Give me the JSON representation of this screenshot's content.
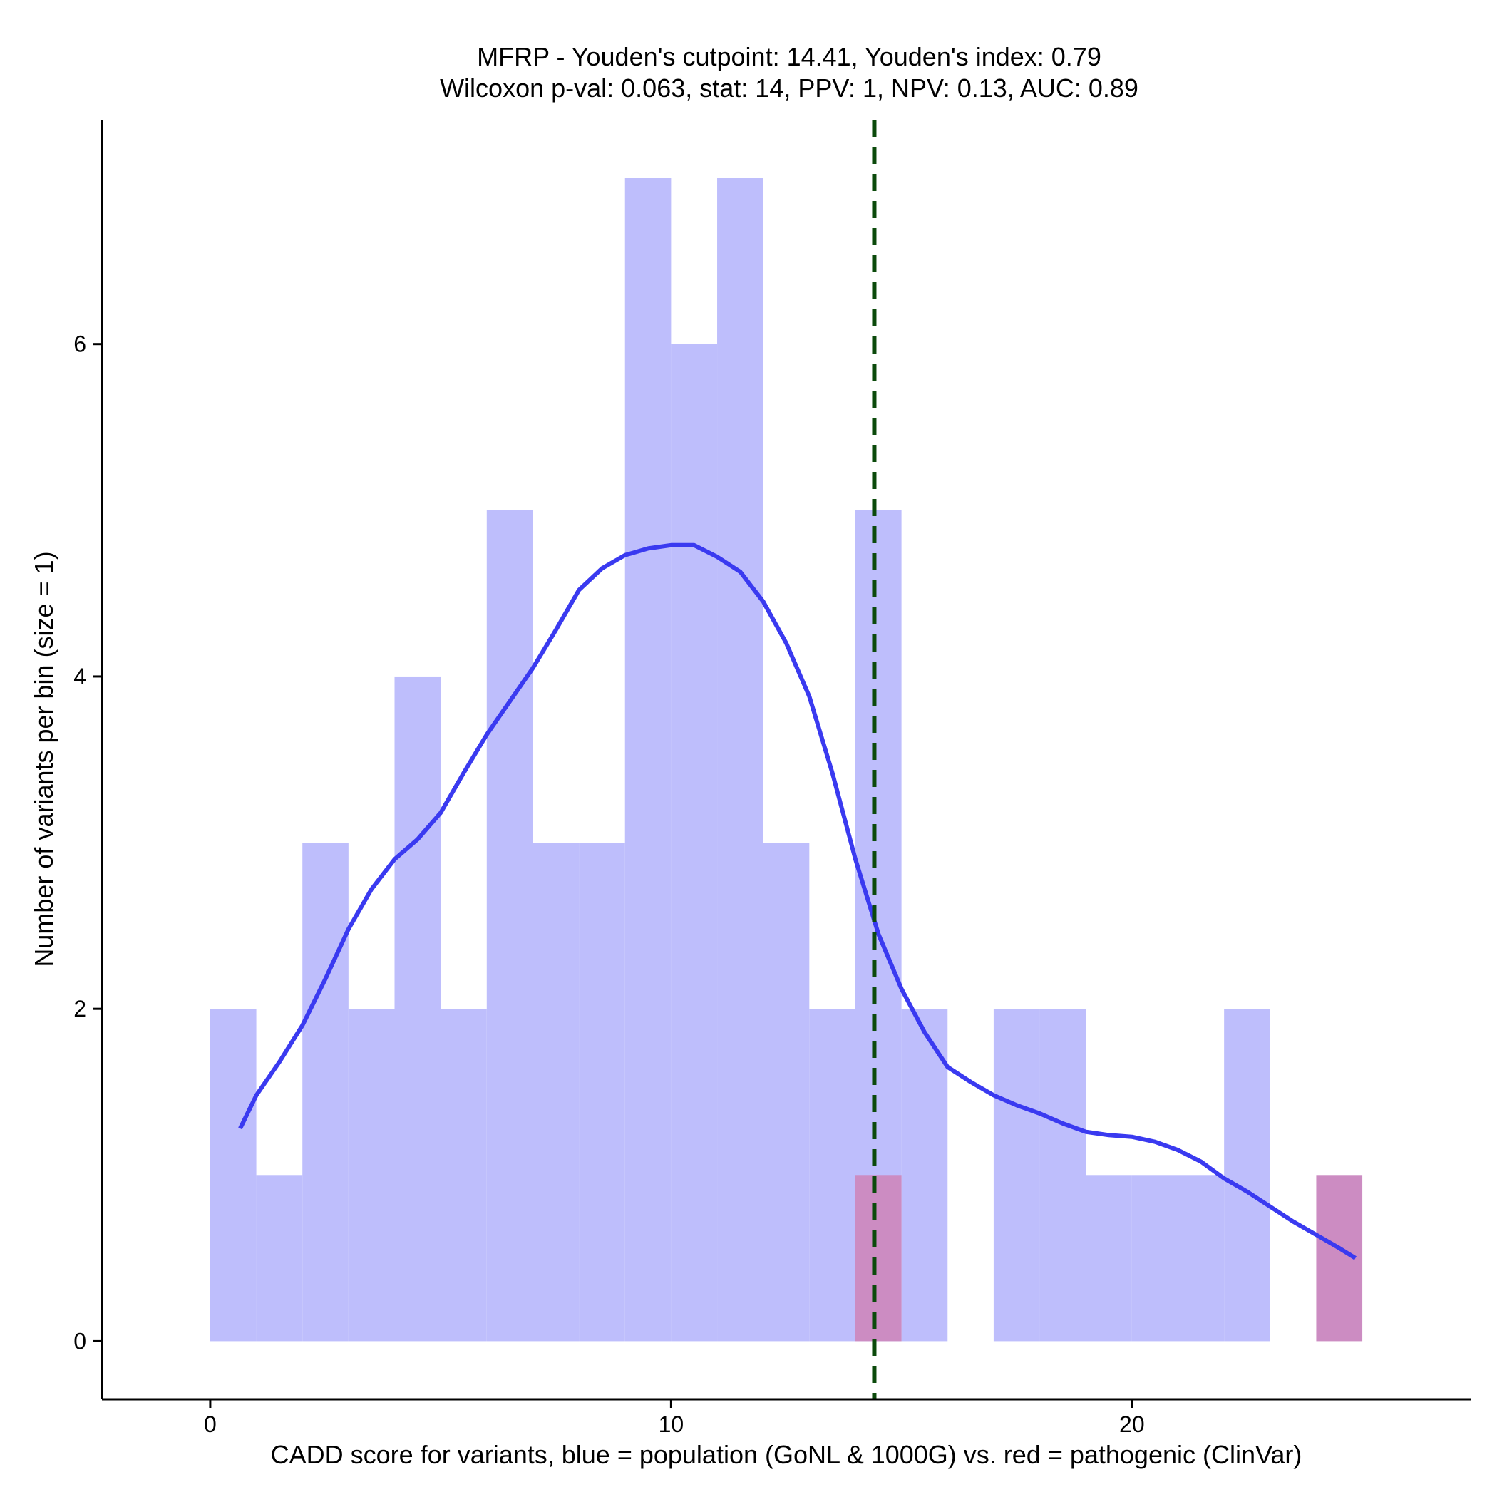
{
  "chart_data": {
    "type": "histogram",
    "title_line1": "MFRP - Youden's cutpoint: 14.41, Youden's index: 0.79",
    "title_line2": "Wilcoxon p-val: 0.063, stat: 14, PPV: 1, NPV: 0.13, AUC: 0.89",
    "xlabel": "CADD score for variants, blue = population (GoNL & 1000G) vs. red = pathogenic (ClinVar)",
    "ylabel": "Number of variants per bin (size = 1)",
    "xlim": [
      -2.35,
      27.35
    ],
    "ylim": [
      -0.35,
      7.35
    ],
    "x_ticks": [
      0,
      10,
      20
    ],
    "x_tick_labels": [
      "0",
      "10",
      "20"
    ],
    "y_ticks": [
      0,
      2,
      4,
      6
    ],
    "y_tick_labels": [
      "0",
      "2",
      "4",
      "6"
    ],
    "bin_width": 1,
    "series": [
      {
        "name": "population",
        "color": "#BEBEFC",
        "bin_starts": [
          0,
          1,
          2,
          3,
          4,
          5,
          6,
          7,
          8,
          9,
          10,
          11,
          12,
          13,
          14,
          15,
          16,
          17,
          18,
          19,
          20,
          21,
          22
        ],
        "counts": [
          2,
          1,
          3,
          2,
          4,
          2,
          5,
          3,
          3,
          7,
          6,
          7,
          3,
          2,
          5,
          2,
          0,
          2,
          2,
          1,
          1,
          1,
          2
        ]
      },
      {
        "name": "pathogenic",
        "color": "#CC8CC2",
        "bin_starts": [
          14,
          24
        ],
        "counts": [
          1,
          1
        ]
      }
    ],
    "density": {
      "color": "#3A3AF0",
      "x": [
        0.65,
        1.0,
        1.5,
        2.0,
        2.5,
        3.0,
        3.5,
        4.0,
        4.5,
        5.0,
        5.5,
        6.0,
        6.5,
        7.0,
        7.5,
        8.0,
        8.5,
        9.0,
        9.5,
        10.0,
        10.5,
        11.0,
        11.5,
        12.0,
        12.5,
        13.0,
        13.5,
        14.0,
        14.5,
        15.0,
        15.5,
        16.0,
        16.5,
        17.0,
        17.5,
        18.0,
        18.5,
        19.0,
        19.5,
        20.0,
        20.5,
        21.0,
        21.5,
        22.0,
        22.5,
        23.0,
        23.5,
        24.0,
        24.5,
        24.85
      ],
      "y": [
        1.28,
        1.48,
        1.68,
        1.9,
        2.18,
        2.48,
        2.72,
        2.9,
        3.02,
        3.18,
        3.42,
        3.65,
        3.85,
        4.05,
        4.28,
        4.52,
        4.65,
        4.73,
        4.77,
        4.79,
        4.79,
        4.72,
        4.63,
        4.45,
        4.2,
        3.88,
        3.42,
        2.9,
        2.45,
        2.12,
        1.86,
        1.65,
        1.56,
        1.48,
        1.42,
        1.37,
        1.31,
        1.26,
        1.24,
        1.23,
        1.2,
        1.15,
        1.08,
        0.98,
        0.9,
        0.81,
        0.72,
        0.64,
        0.56,
        0.5
      ]
    },
    "cutpoint": {
      "x": 14.41,
      "color": "#0B4A0B",
      "style": "dashed"
    }
  }
}
